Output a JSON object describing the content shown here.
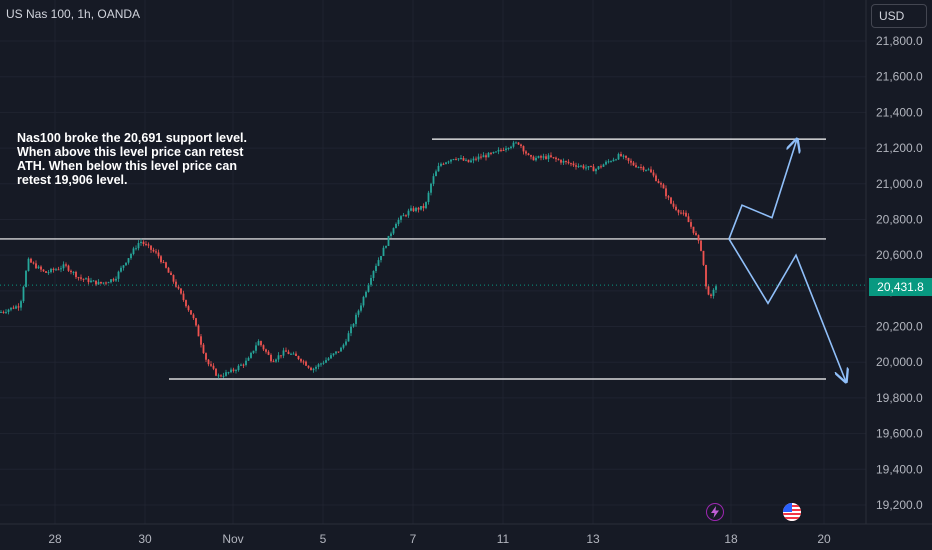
{
  "header": {
    "symbol_title": "US Nas 100, 1h, OANDA"
  },
  "toolbar": {
    "currency_label": "USD"
  },
  "annotation": {
    "lines": [
      "Nas100 broke the 20,691 support level.",
      "When above this level price can retest",
      "ATH. When below this level price can",
      "retest 19,906 level."
    ]
  },
  "last_price": {
    "label": "20,431.8",
    "value": 20431.8,
    "color": "#089981"
  },
  "events": {
    "lightning_icon": "lightning-icon",
    "flag_icon": "us-flag-icon"
  },
  "colors": {
    "up": "#26a69a",
    "down": "#ef5350",
    "background": "#161a25",
    "grid": "#1f2330",
    "arrow": "#90bff9"
  },
  "chart_data": {
    "type": "candlestick",
    "title": "US Nas 100, 1h, OANDA",
    "ylim": [
      19100,
      21950
    ],
    "y_ticks": [
      {
        "value": 21800,
        "label": "21,800.0"
      },
      {
        "value": 21600,
        "label": "21,600.0"
      },
      {
        "value": 21400,
        "label": "21,400.0"
      },
      {
        "value": 21200,
        "label": "21,200.0"
      },
      {
        "value": 21000,
        "label": "21,000.0"
      },
      {
        "value": 20800,
        "label": "20,800.0"
      },
      {
        "value": 20600,
        "label": "20,600.0"
      },
      {
        "value": 20400,
        "label": "20,400.0"
      },
      {
        "value": 20200,
        "label": "20,200.0"
      },
      {
        "value": 20000,
        "label": "20,000.0"
      },
      {
        "value": 19800,
        "label": "19,800.0"
      },
      {
        "value": 19600,
        "label": "19,600.0"
      },
      {
        "value": 19400,
        "label": "19,400.0"
      },
      {
        "value": 19200,
        "label": "19,200.0"
      }
    ],
    "x_domain": [
      0,
      932
    ],
    "x_ticks": [
      {
        "pos": 55,
        "label": "28"
      },
      {
        "pos": 145,
        "label": "30"
      },
      {
        "pos": 233,
        "label": "Nov"
      },
      {
        "pos": 323,
        "label": "5"
      },
      {
        "pos": 413,
        "label": "7"
      },
      {
        "pos": 503,
        "label": "11"
      },
      {
        "pos": 593,
        "label": "13"
      },
      {
        "pos": 731,
        "label": "18"
      },
      {
        "pos": 824,
        "label": "20"
      }
    ],
    "levels": [
      {
        "name": "ATH",
        "value": 21250,
        "x_from": 432,
        "x_to": 826
      },
      {
        "name": "support",
        "value": 20691,
        "x_from": 0,
        "x_to": 826
      },
      {
        "name": "target",
        "value": 19906,
        "x_from": 169,
        "x_to": 826
      }
    ],
    "price_path": [
      [
        0,
        20280
      ],
      [
        20,
        20320
      ],
      [
        28,
        20570
      ],
      [
        45,
        20500
      ],
      [
        65,
        20540
      ],
      [
        80,
        20470
      ],
      [
        100,
        20440
      ],
      [
        115,
        20470
      ],
      [
        125,
        20560
      ],
      [
        140,
        20680
      ],
      [
        158,
        20600
      ],
      [
        175,
        20440
      ],
      [
        193,
        20250
      ],
      [
        207,
        20000
      ],
      [
        218,
        19920
      ],
      [
        232,
        19950
      ],
      [
        248,
        20010
      ],
      [
        258,
        20120
      ],
      [
        272,
        20010
      ],
      [
        285,
        20060
      ],
      [
        300,
        20020
      ],
      [
        312,
        19960
      ],
      [
        328,
        20020
      ],
      [
        342,
        20080
      ],
      [
        352,
        20200
      ],
      [
        362,
        20340
      ],
      [
        372,
        20500
      ],
      [
        385,
        20650
      ],
      [
        395,
        20780
      ],
      [
        410,
        20850
      ],
      [
        425,
        20870
      ],
      [
        432,
        21020
      ],
      [
        440,
        21110
      ],
      [
        455,
        21150
      ],
      [
        468,
        21120
      ],
      [
        480,
        21150
      ],
      [
        495,
        21170
      ],
      [
        507,
        21210
      ],
      [
        519,
        21230
      ],
      [
        530,
        21140
      ],
      [
        548,
        21150
      ],
      [
        565,
        21120
      ],
      [
        580,
        21100
      ],
      [
        595,
        21080
      ],
      [
        610,
        21130
      ],
      [
        620,
        21160
      ],
      [
        632,
        21110
      ],
      [
        648,
        21080
      ],
      [
        660,
        21000
      ],
      [
        672,
        20880
      ],
      [
        685,
        20820
      ],
      [
        695,
        20720
      ],
      [
        702,
        20620
      ],
      [
        706,
        20420
      ],
      [
        711,
        20360
      ],
      [
        716,
        20431.8
      ]
    ],
    "projections": [
      {
        "name": "bullish",
        "points": [
          [
            729,
            20691
          ],
          [
            742,
            20880
          ],
          [
            772,
            20810
          ],
          [
            797,
            21250
          ]
        ]
      },
      {
        "name": "bearish",
        "points": [
          [
            729,
            20691
          ],
          [
            768,
            20330
          ],
          [
            796,
            20600
          ],
          [
            846,
            19890
          ]
        ]
      }
    ]
  }
}
